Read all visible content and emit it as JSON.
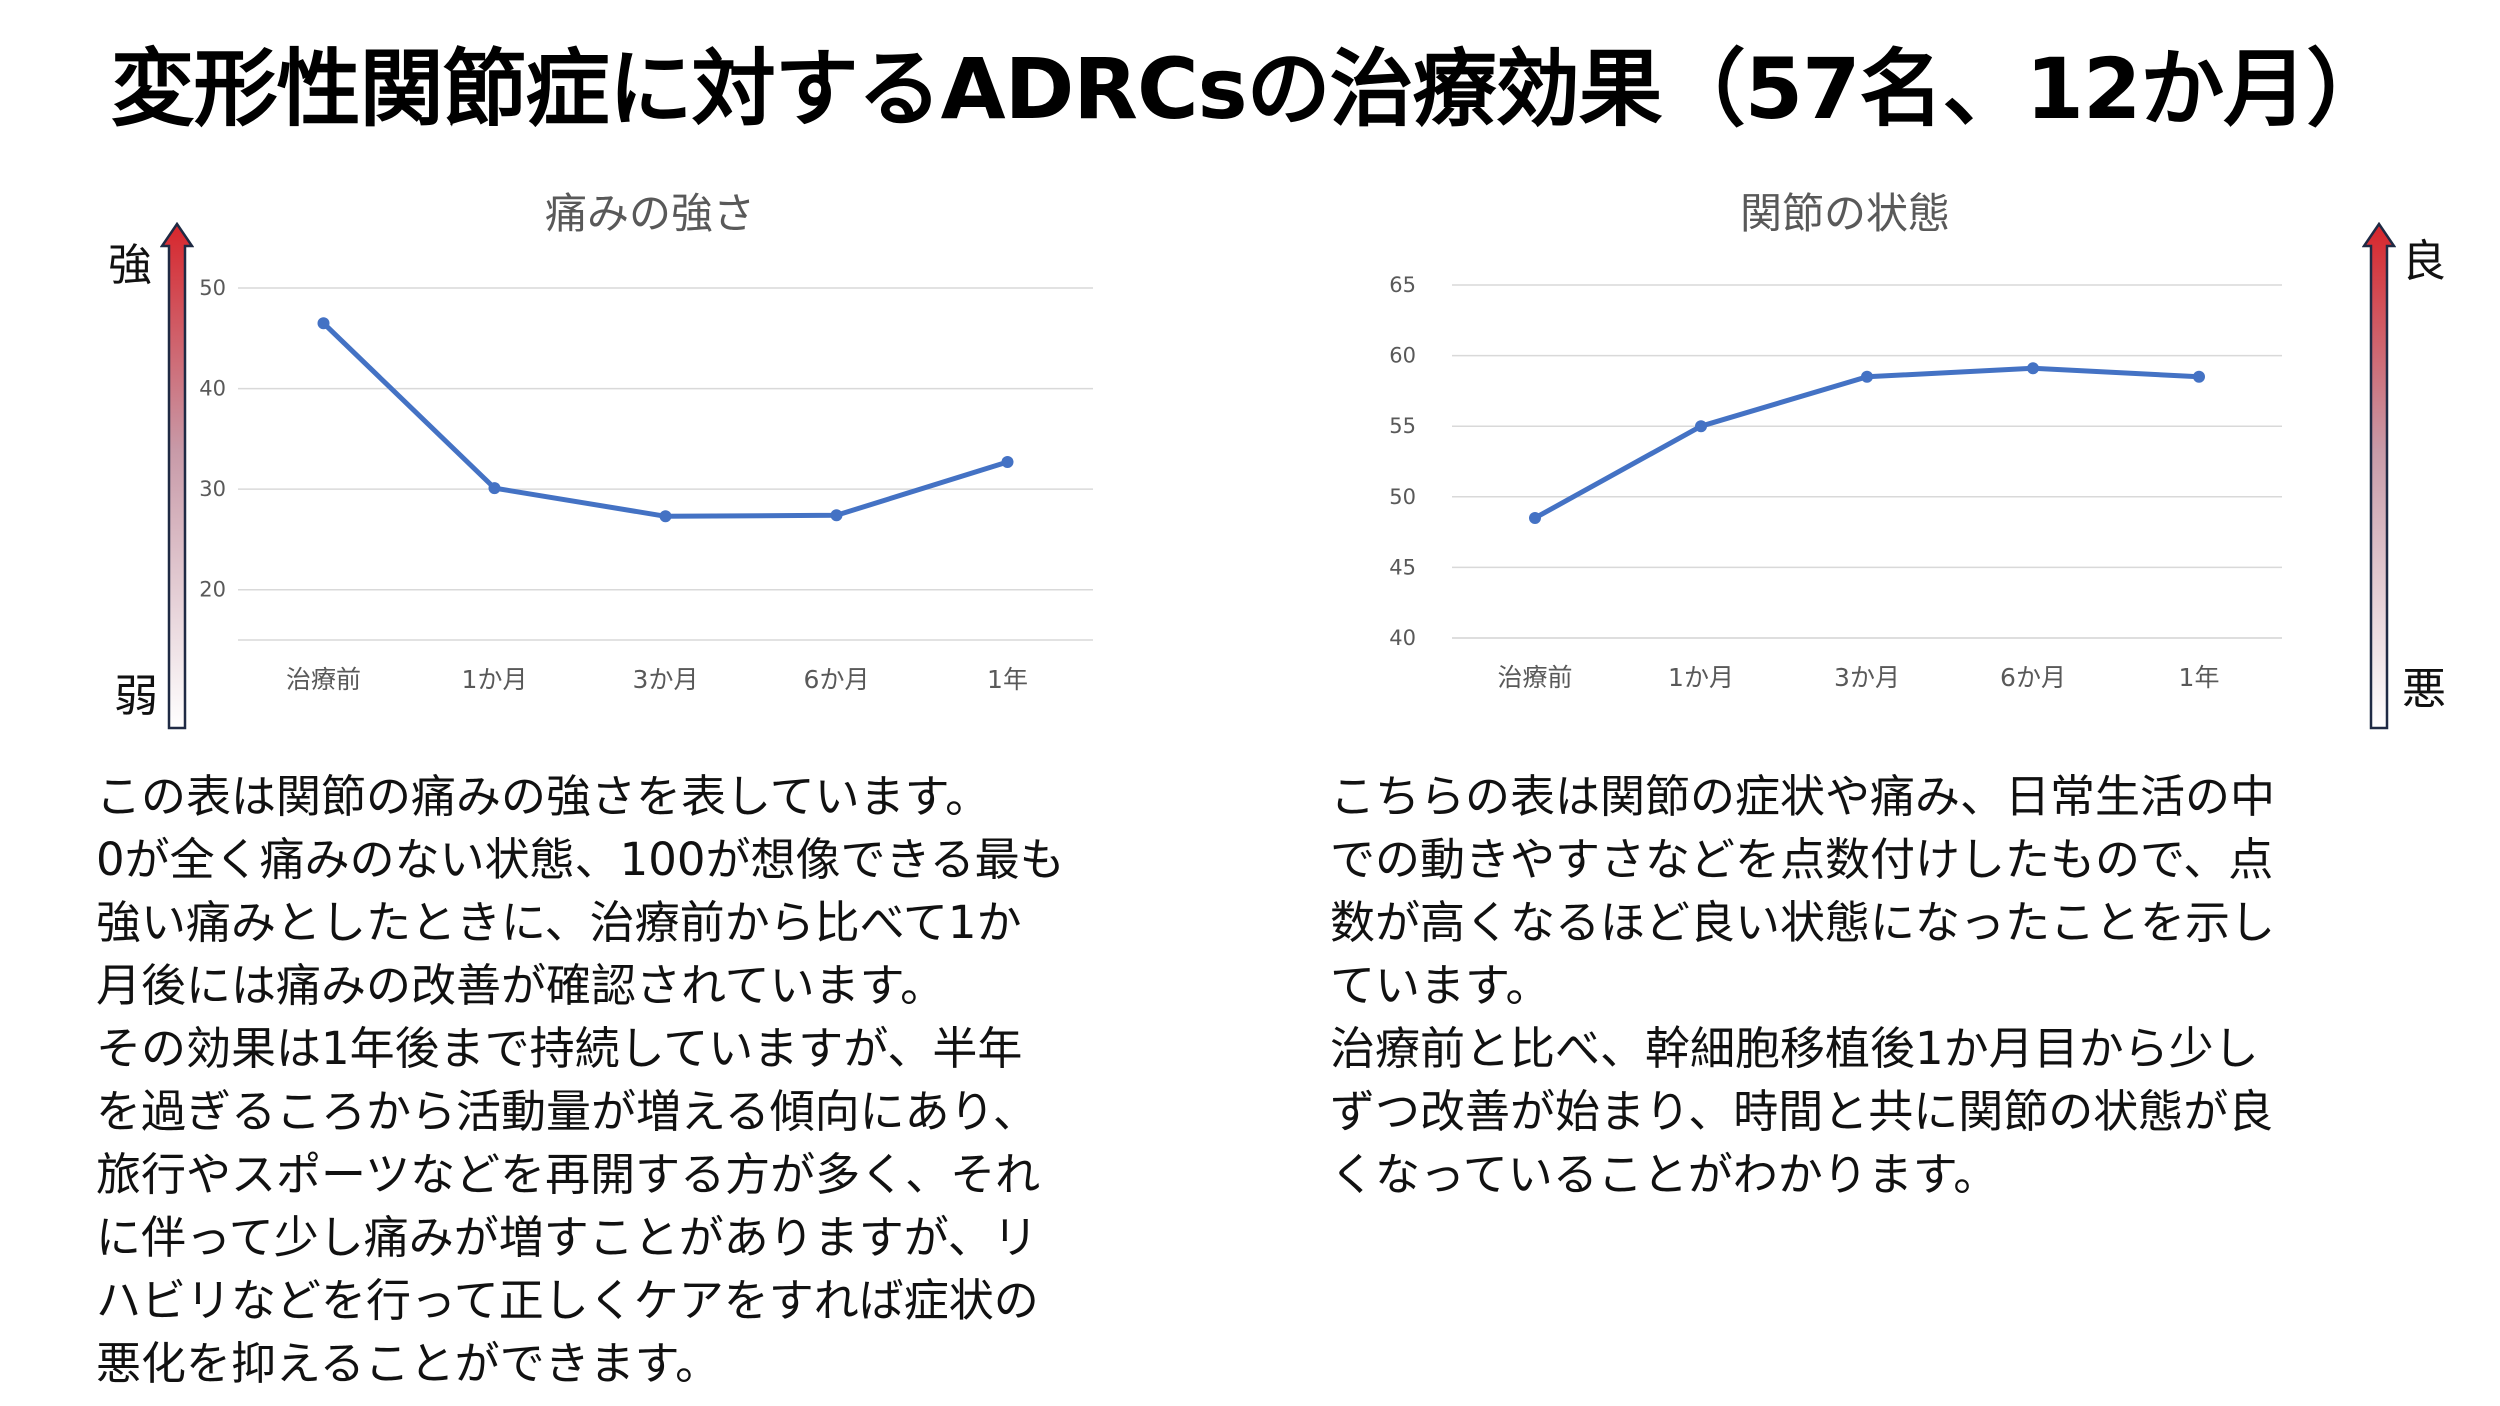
{
  "title": "変形性関節症に対するADRCsの治療効果（57名、12か月）",
  "charts": [
    {
      "id": "pain",
      "scale_top": "強",
      "scale_bottom": "弱",
      "text": [
        "この表は関節の痛みの強さを表しています。",
        "0が全く痛みのない状態、100が想像できる最も",
        "強い痛みとしたときに、治療前から比べて1か",
        "月後には痛みの改善が確認されています。",
        "その効果は1年後まで持続していますが、半年",
        "を過ぎるころから活動量が増える傾向にあり、",
        "旅行やスポーツなどを再開する方が多く、それ",
        "に伴って少し痛みが増すことがありますが、リ",
        "ハビリなどを行って正しくケアをすれば症状の",
        "悪化を抑えることができます。"
      ]
    },
    {
      "id": "joint",
      "scale_top": "良",
      "scale_bottom": "悪",
      "text": [
        "こちらの表は関節の症状や痛み、日常生活の中",
        "での動きやすさなどを点数付けしたもので、点",
        "数が高くなるほど良い状態になったことを示し",
        "ています。",
        "治療前と比べ、幹細胞移植後1か月目から少し",
        "ずつ改善が始まり、時間と共に関節の状態が良",
        "くなっていることがわかります。"
      ]
    }
  ],
  "colors": {
    "series": "#4472c4",
    "arrow_top": "#d7262c",
    "arrow_bottom": "#ffffff",
    "arrow_outline": "#1f2a44"
  },
  "chart_data": [
    {
      "type": "line",
      "title": "痛みの強さ",
      "categories": [
        "治療前",
        "1か月",
        "3か月",
        "6か月",
        "1年"
      ],
      "values": [
        46.5,
        30.1,
        27.3,
        27.4,
        32.7
      ],
      "ylim": [
        15,
        50
      ],
      "yticks": [
        20,
        30,
        40,
        50
      ],
      "grid": true
    },
    {
      "type": "line",
      "title": "関節の状態",
      "categories": [
        "治療前",
        "1か月",
        "3か月",
        "6か月",
        "1年"
      ],
      "values": [
        48.5,
        55.0,
        58.5,
        59.1,
        58.5
      ],
      "ylim": [
        40,
        65
      ],
      "yticks": [
        40,
        45,
        50,
        55,
        60,
        65
      ],
      "grid": true
    }
  ]
}
